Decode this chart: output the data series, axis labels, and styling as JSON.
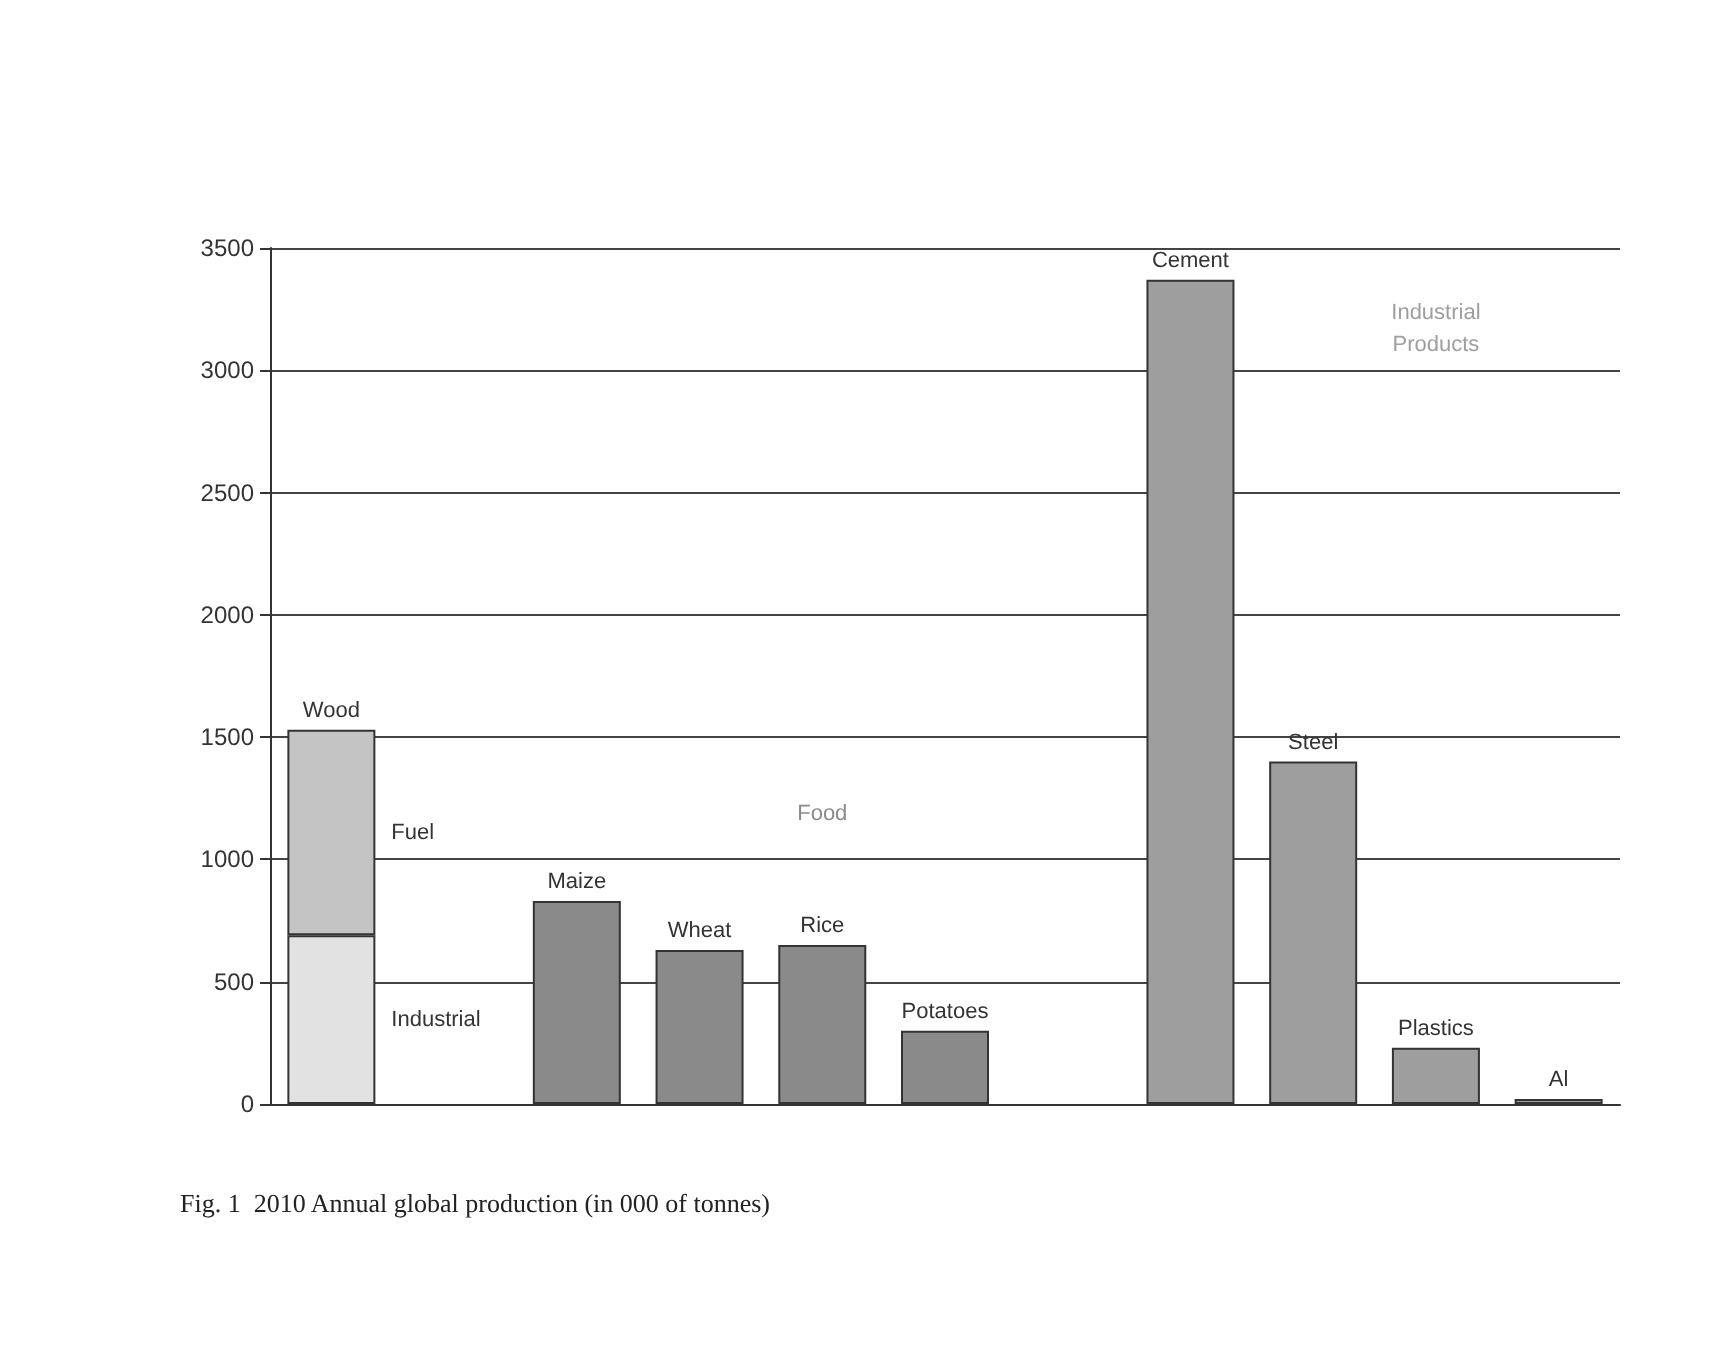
{
  "chart_data": {
    "type": "bar",
    "title": "Fig. 1  2010 Annual global production (in 000 of tonnes)",
    "categories": [
      "Wood",
      null,
      "Maize",
      "Wheat",
      "Rice",
      "Potatoes",
      null,
      "Cement",
      "Steel",
      "Plastics",
      "Al"
    ],
    "stacked": true,
    "series": [
      {
        "name": "Industrial",
        "color": "#e2e2e2",
        "values": [
          690,
          null,
          null,
          null,
          null,
          null,
          null,
          null,
          null,
          null,
          null
        ]
      },
      {
        "name": "Fuel",
        "color": "#c4c4c4",
        "values": [
          840,
          null,
          null,
          null,
          null,
          null,
          null,
          null,
          null,
          null,
          null
        ]
      },
      {
        "name": "Food",
        "color": "#8a8a8a",
        "values": [
          null,
          null,
          830,
          630,
          650,
          300,
          null,
          null,
          null,
          null,
          null
        ]
      },
      {
        "name": "Industrial Products",
        "color": "#9e9e9e",
        "values": [
          null,
          null,
          null,
          null,
          null,
          null,
          null,
          3370,
          1400,
          230,
          20
        ]
      }
    ],
    "ylim": [
      0,
      3500
    ],
    "yticks": [
      0,
      500,
      1000,
      1500,
      2000,
      2500,
      3000,
      3500
    ],
    "grid": "y"
  }
}
